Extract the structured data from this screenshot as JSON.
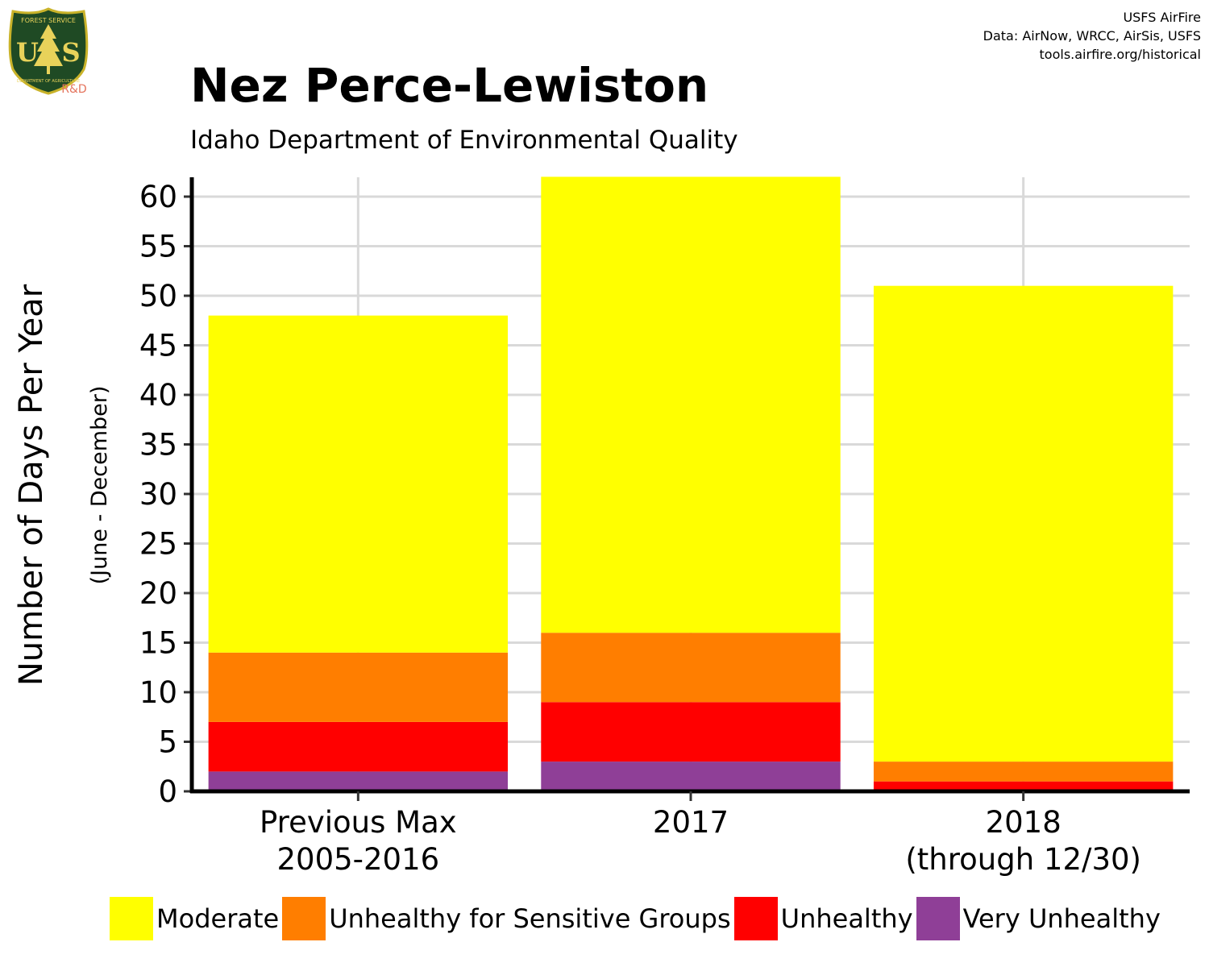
{
  "header": {
    "title": "Nez Perce-Lewiston",
    "subtitle": "Idaho Department of Environmental Quality",
    "credits": [
      "USFS AirFire",
      "Data: AirNow, WRCC, AirSis, USFS",
      "tools.airfire.org/historical"
    ]
  },
  "logo": {
    "icon": "usfs-shield-icon",
    "top_text": "FOREST SERVICE",
    "main_text": "U S",
    "bottom_text": "DEPARTMENT OF AGRICULTURE",
    "badge": "R&D",
    "colors": {
      "shield": "#1f4a24",
      "border": "#c9b32a",
      "letters": "#e8d25a",
      "badge": "#e4735c"
    }
  },
  "chart_data": {
    "type": "bar",
    "stacked": true,
    "categories": [
      [
        "Previous Max",
        "2005-2016"
      ],
      [
        "2017"
      ],
      [
        "2018",
        "(through 12/30)"
      ]
    ],
    "series": [
      {
        "name": "Very Unhealthy",
        "color": "#8f3f97",
        "values": [
          2,
          3,
          0
        ]
      },
      {
        "name": "Unhealthy",
        "color": "#ff0000",
        "values": [
          5,
          6,
          1
        ]
      },
      {
        "name": "Unhealthy for Sensitive Groups",
        "color": "#ff7e00",
        "values": [
          7,
          7,
          2
        ]
      },
      {
        "name": "Moderate",
        "color": "#ffff00",
        "values": [
          34,
          46,
          48
        ]
      }
    ],
    "legend_order": [
      "Moderate",
      "Unhealthy for Sensitive Groups",
      "Unhealthy",
      "Very Unhealthy"
    ],
    "ylabel": "Number of Days Per Year",
    "ylabel_sub": "(June - December)",
    "yticks": [
      0,
      5,
      10,
      15,
      20,
      25,
      30,
      35,
      40,
      45,
      50,
      55,
      60
    ],
    "ylim": [
      0,
      62
    ],
    "grid": true,
    "legend_position": "bottom"
  }
}
